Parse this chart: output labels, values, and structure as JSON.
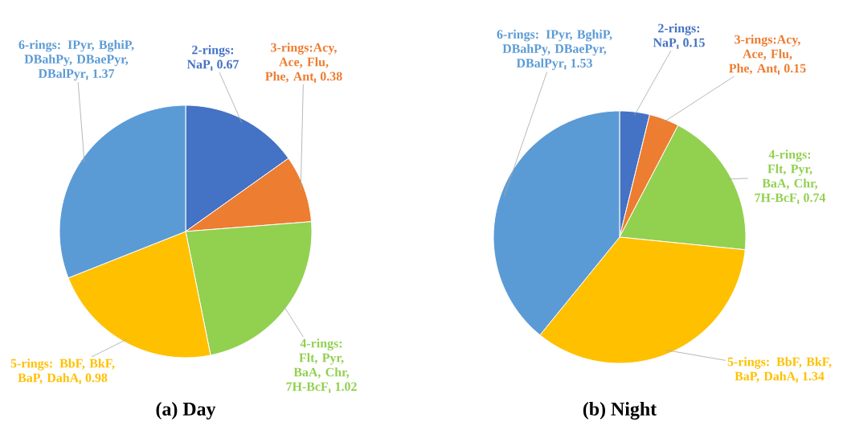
{
  "chart_data": [
    {
      "type": "pie",
      "title": "(a) Day",
      "categories": [
        "2-rings: NaP",
        "3-rings:Acy, Ace, Flu, Phe, Ant",
        "4-rings: Flt, Pyr, BaA, Chr, 7H-BcF",
        "5-rings: BbF, BkF, BaP, DahA",
        "6-rings: IPyr, BghiP, DBahPy, DBaePyr, DBalPyr"
      ],
      "values": [
        0.67,
        0.38,
        1.02,
        0.98,
        1.37
      ],
      "colors": [
        "#4472c4",
        "#ed7d31",
        "#92d050",
        "#ffc000",
        "#5b9bd5"
      ],
      "data_labels": true
    },
    {
      "type": "pie",
      "title": "(b) Night",
      "categories": [
        "2-rings: NaP",
        "3-rings:Acy, Ace, Flu, Phe, Ant",
        "4-rings: Flt, Pyr, BaA, Chr, 7H-BcF",
        "5-rings: BbF, BkF, BaP, DahA",
        "6-rings: IPyr, BghiP, DBahPy, DBaePyr, DBalPyr"
      ],
      "values": [
        0.15,
        0.15,
        0.74,
        1.34,
        1.53
      ],
      "colors": [
        "#4472c4",
        "#ed7d31",
        "#92d050",
        "#ffc000",
        "#5b9bd5"
      ],
      "data_labels": true
    }
  ]
}
